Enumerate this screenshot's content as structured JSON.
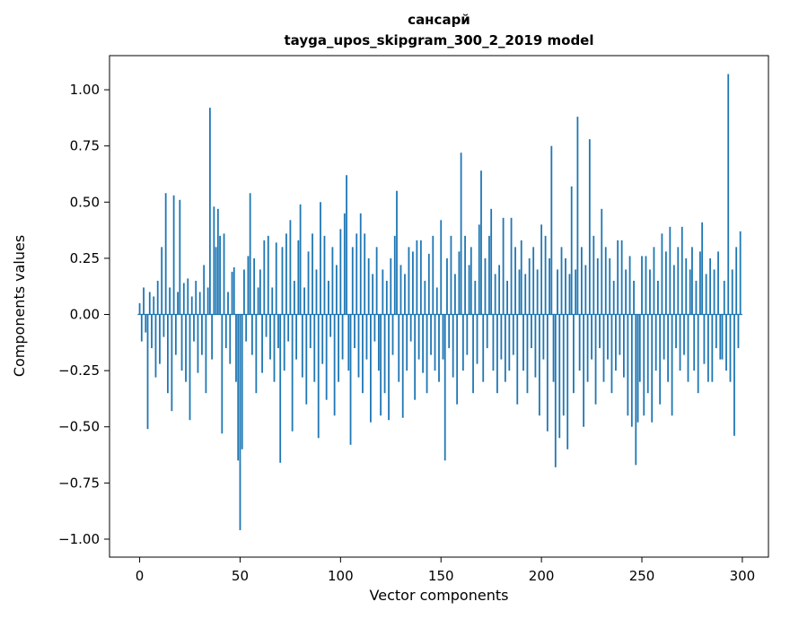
{
  "figure": {
    "title_line1": "сансарй",
    "title_line2": "tayga_upos_skipgram_300_2_2019 model",
    "xlabel": "Vector components",
    "ylabel": "Components values"
  },
  "chart_data": {
    "type": "bar",
    "title": "сансарй\ntayga_upos_skipgram_300_2_2019 model",
    "xlabel": "Vector components",
    "ylabel": "Components values",
    "bar_color": "#1f77b4",
    "grid": false,
    "legend": null,
    "xlim": [
      -15,
      313
    ],
    "ylim": [
      -1.08,
      1.152
    ],
    "x_ticks": [
      0,
      50,
      100,
      150,
      200,
      250,
      300
    ],
    "y_ticks": [
      -1.0,
      -0.75,
      -0.5,
      -0.25,
      0.0,
      0.25,
      0.5,
      0.75,
      1.0
    ],
    "n_components": 300,
    "values": [
      0.05,
      -0.12,
      0.12,
      -0.08,
      -0.51,
      0.1,
      -0.15,
      0.08,
      -0.28,
      0.15,
      -0.22,
      0.3,
      -0.1,
      0.54,
      -0.35,
      0.12,
      -0.43,
      0.53,
      -0.18,
      0.1,
      0.51,
      -0.25,
      0.14,
      -0.3,
      0.16,
      -0.47,
      0.08,
      -0.12,
      0.15,
      -0.26,
      0.1,
      -0.18,
      0.22,
      -0.35,
      0.12,
      0.92,
      -0.2,
      0.48,
      0.3,
      0.47,
      0.35,
      -0.53,
      0.36,
      -0.15,
      0.1,
      -0.22,
      0.19,
      0.21,
      -0.3,
      -0.65,
      -0.96,
      -0.6,
      0.2,
      -0.12,
      0.26,
      0.54,
      -0.18,
      0.25,
      -0.35,
      0.12,
      0.2,
      -0.26,
      0.33,
      -0.1,
      0.35,
      -0.2,
      0.12,
      -0.3,
      0.32,
      -0.15,
      -0.66,
      0.3,
      -0.25,
      0.36,
      -0.12,
      0.42,
      -0.52,
      0.15,
      -0.2,
      0.33,
      0.49,
      -0.28,
      0.12,
      -0.4,
      0.28,
      -0.15,
      0.36,
      -0.3,
      0.2,
      -0.55,
      0.5,
      -0.22,
      0.35,
      -0.38,
      0.15,
      -0.1,
      0.3,
      -0.45,
      0.22,
      -0.3,
      0.38,
      -0.2,
      0.45,
      0.62,
      -0.25,
      -0.58,
      0.3,
      -0.15,
      0.36,
      -0.28,
      0.45,
      -0.35,
      0.36,
      -0.2,
      0.25,
      -0.48,
      0.18,
      -0.12,
      0.3,
      -0.25,
      -0.45,
      0.2,
      -0.35,
      0.15,
      -0.47,
      0.25,
      -0.18,
      0.35,
      0.55,
      -0.3,
      0.22,
      -0.46,
      0.18,
      -0.25,
      0.3,
      -0.12,
      0.28,
      -0.38,
      0.33,
      -0.2,
      0.33,
      -0.26,
      0.15,
      -0.35,
      0.27,
      -0.18,
      0.35,
      -0.25,
      0.12,
      -0.3,
      0.42,
      -0.2,
      -0.65,
      0.25,
      -0.15,
      0.35,
      -0.28,
      0.18,
      -0.4,
      0.28,
      0.72,
      -0.25,
      0.35,
      -0.18,
      0.22,
      0.3,
      -0.35,
      0.15,
      -0.22,
      0.4,
      0.64,
      -0.3,
      0.25,
      -0.15,
      0.35,
      0.47,
      -0.25,
      0.18,
      -0.35,
      0.22,
      -0.2,
      0.43,
      -0.3,
      0.15,
      -0.25,
      0.43,
      -0.18,
      0.3,
      -0.4,
      0.2,
      0.33,
      -0.25,
      0.18,
      -0.35,
      0.25,
      -0.15,
      0.3,
      -0.28,
      0.2,
      -0.45,
      0.4,
      -0.2,
      0.35,
      -0.52,
      0.25,
      0.75,
      -0.3,
      -0.68,
      0.2,
      -0.55,
      0.3,
      -0.45,
      0.25,
      -0.6,
      0.18,
      0.57,
      -0.35,
      0.2,
      0.88,
      -0.25,
      0.3,
      -0.5,
      0.22,
      -0.3,
      0.78,
      -0.2,
      0.35,
      -0.4,
      0.25,
      -0.15,
      0.47,
      -0.3,
      0.3,
      -0.2,
      0.25,
      -0.35,
      0.15,
      -0.25,
      0.33,
      -0.18,
      0.33,
      -0.28,
      0.2,
      -0.45,
      0.26,
      -0.5,
      0.15,
      -0.67,
      -0.48,
      -0.3,
      0.26,
      -0.45,
      0.26,
      -0.35,
      0.2,
      -0.48,
      0.3,
      -0.25,
      0.15,
      -0.4,
      0.36,
      -0.2,
      0.28,
      -0.3,
      0.39,
      -0.45,
      0.22,
      -0.15,
      0.3,
      -0.25,
      0.39,
      -0.18,
      0.25,
      -0.3,
      0.2,
      0.3,
      -0.25,
      0.15,
      -0.35,
      0.28,
      0.41,
      -0.22,
      0.18,
      -0.3,
      0.25,
      -0.3,
      0.2,
      -0.15,
      0.28,
      -0.2,
      -0.2,
      0.15,
      -0.25,
      1.07,
      -0.3,
      0.2,
      -0.54,
      0.3,
      -0.15,
      0.37
    ]
  }
}
